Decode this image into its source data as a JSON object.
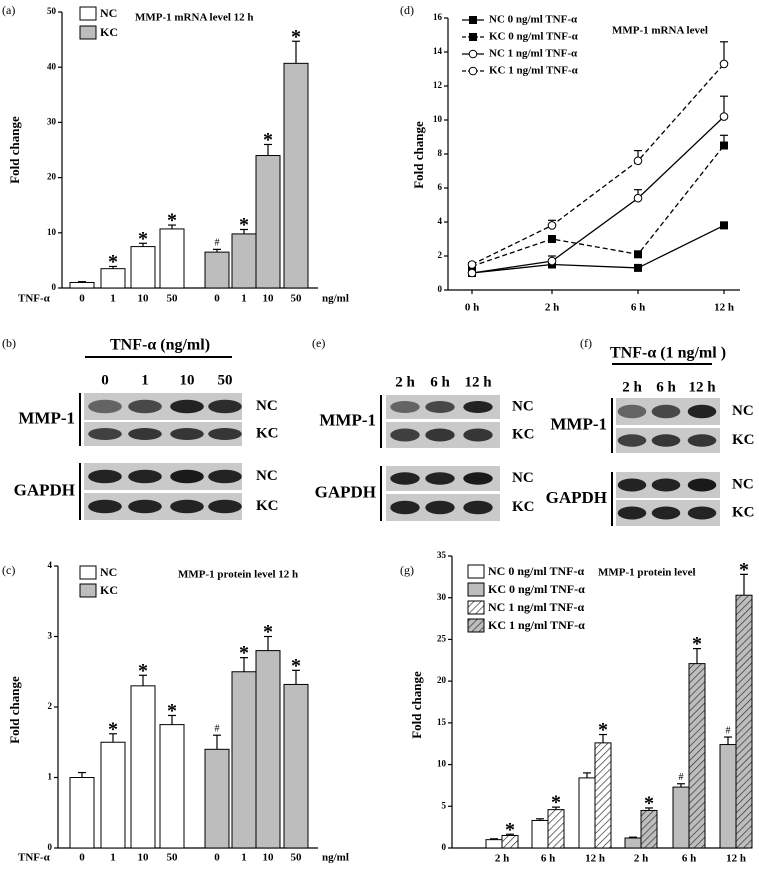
{
  "chart_data": [
    {
      "type": "bar",
      "panel": "(a)",
      "title": "MMP-1 mRNA level 12 h",
      "ylabel": "Fold change",
      "xprefix": "TNF-α",
      "xsuffix": "ng/ml",
      "categories": [
        "0",
        "1",
        "10",
        "50"
      ],
      "series": [
        {
          "name": "NC",
          "color": "#ffffff",
          "values": [
            1.0,
            3.5,
            7.5,
            10.7
          ],
          "errors": [
            0.15,
            0.4,
            0.6,
            0.7
          ],
          "markers": [
            null,
            "*",
            "*",
            "*"
          ]
        },
        {
          "name": "KC",
          "color": "#bdbdbd",
          "values": [
            6.5,
            9.8,
            24.0,
            40.7
          ],
          "errors": [
            0.5,
            0.8,
            2.0,
            4.0
          ],
          "markers": [
            "#",
            "*",
            "*",
            "*"
          ]
        }
      ],
      "ylim": [
        0,
        50
      ],
      "yticks": [
        0,
        10,
        20,
        30,
        40,
        50
      ]
    },
    {
      "type": "line",
      "panel": "(d)",
      "title": "MMP-1 mRNA level",
      "ylabel": "Fold change",
      "categories": [
        "0 h",
        "2 h",
        "6 h",
        "12 h"
      ],
      "series": [
        {
          "name": "NC 0 ng/ml TNF-α",
          "color": "#000000",
          "dashed": false,
          "marker": "square",
          "filled": true,
          "values": [
            1.0,
            1.5,
            1.3,
            3.8
          ],
          "errors": [
            0.05,
            0.1,
            0.1,
            0.2
          ]
        },
        {
          "name": "KC 0 ng/ml TNF-α",
          "color": "#000000",
          "dashed": true,
          "marker": "square",
          "filled": true,
          "values": [
            1.4,
            3.0,
            2.1,
            8.5
          ],
          "errors": [
            0.1,
            0.15,
            0.15,
            0.6
          ]
        },
        {
          "name": "NC 1 ng/ml TNF-α",
          "color": "#000000",
          "dashed": false,
          "marker": "circle",
          "filled": false,
          "values": [
            1.0,
            1.7,
            5.4,
            10.2
          ],
          "errors": [
            0.05,
            0.3,
            0.5,
            1.2
          ]
        },
        {
          "name": "KC 1 ng/ml TNF-α",
          "color": "#000000",
          "dashed": true,
          "marker": "circle",
          "filled": false,
          "values": [
            1.5,
            3.8,
            7.6,
            13.3
          ],
          "errors": [
            0.1,
            0.3,
            0.6,
            1.3
          ]
        }
      ],
      "ylim": [
        0,
        16
      ],
      "yticks": [
        0,
        2,
        4,
        6,
        8,
        10,
        12,
        14,
        16
      ]
    },
    {
      "type": "bar",
      "panel": "(c)",
      "title": "MMP-1 protein level 12 h",
      "ylabel": "Fold change",
      "xprefix": "TNF-α",
      "xsuffix": "ng/ml",
      "categories": [
        "0",
        "1",
        "10",
        "50"
      ],
      "series": [
        {
          "name": "NC",
          "color": "#ffffff",
          "values": [
            1.0,
            1.5,
            2.3,
            1.75
          ],
          "errors": [
            0.07,
            0.12,
            0.15,
            0.13
          ],
          "markers": [
            null,
            "*",
            "*",
            "*"
          ]
        },
        {
          "name": "KC",
          "color": "#bdbdbd",
          "values": [
            1.4,
            2.5,
            2.8,
            2.32
          ],
          "errors": [
            0.2,
            0.2,
            0.2,
            0.2
          ],
          "markers": [
            "#",
            "*",
            "*",
            "*"
          ]
        }
      ],
      "ylim": [
        0,
        4
      ],
      "yticks": [
        0,
        1,
        2,
        3,
        4
      ]
    },
    {
      "type": "bar",
      "panel": "(g)",
      "title": "MMP-1 protein level",
      "ylabel": "Fold change",
      "categories": [
        "2 h",
        "6 h",
        "12 h",
        "2 h",
        "6 h",
        "12 h"
      ],
      "series": [
        {
          "name": "NC 0 ng/ml TNF-α",
          "color": "#ffffff",
          "hatch": false,
          "values": [
            1.0,
            3.3,
            8.4,
            null,
            null,
            null
          ],
          "errors": [
            0.1,
            0.2,
            0.6,
            null,
            null,
            null
          ]
        },
        {
          "name": "KC 0 ng/ml TNF-α",
          "color": "#bdbdbd",
          "hatch": false,
          "values": [
            null,
            null,
            null,
            1.2,
            7.3,
            12.4
          ],
          "errors": [
            null,
            null,
            null,
            0.1,
            0.4,
            0.9
          ],
          "markers": [
            null,
            null,
            null,
            null,
            "#",
            "#"
          ]
        },
        {
          "name": "NC 1 ng/ml TNF-α",
          "color": "#ffffff",
          "hatch": true,
          "values": [
            1.5,
            4.6,
            12.6,
            null,
            null,
            null
          ],
          "errors": [
            0.15,
            0.3,
            1.0,
            null,
            null,
            null
          ],
          "markers": [
            "*",
            "*",
            "*",
            null,
            null,
            null
          ]
        },
        {
          "name": "KC 1 ng/ml TNF-α",
          "color": "#bdbdbd",
          "hatch": true,
          "values": [
            null,
            null,
            null,
            4.5,
            22.1,
            30.3
          ],
          "errors": [
            null,
            null,
            null,
            0.3,
            1.8,
            2.5
          ],
          "markers": [
            null,
            null,
            null,
            "*",
            "*",
            "*"
          ]
        }
      ],
      "ylim": [
        0,
        35
      ],
      "yticks": [
        0,
        5,
        10,
        15,
        20,
        25,
        30,
        35
      ]
    }
  ],
  "blots": [
    {
      "panel": "(b)",
      "header": "TNF-α (ng/ml)",
      "lanes": [
        "0",
        "1",
        "10",
        "50"
      ],
      "proteins": [
        "MMP-1",
        "GAPDH"
      ],
      "rows": [
        "NC",
        "KC",
        "NC",
        "KC"
      ]
    },
    {
      "panel": "(e)",
      "lanes": [
        "2 h",
        "6 h",
        "12 h"
      ],
      "proteins": [
        "MMP-1",
        "GAPDH"
      ],
      "rows": [
        "NC",
        "KC",
        "NC",
        "KC"
      ]
    },
    {
      "panel": "(f)",
      "header": "TNF-α (1 ng/ml )",
      "lanes": [
        "2 h",
        "6 h",
        "12 h"
      ],
      "proteins": [
        "MMP-1",
        "GAPDH"
      ],
      "rows": [
        "NC",
        "KC",
        "NC",
        "KC"
      ]
    }
  ]
}
